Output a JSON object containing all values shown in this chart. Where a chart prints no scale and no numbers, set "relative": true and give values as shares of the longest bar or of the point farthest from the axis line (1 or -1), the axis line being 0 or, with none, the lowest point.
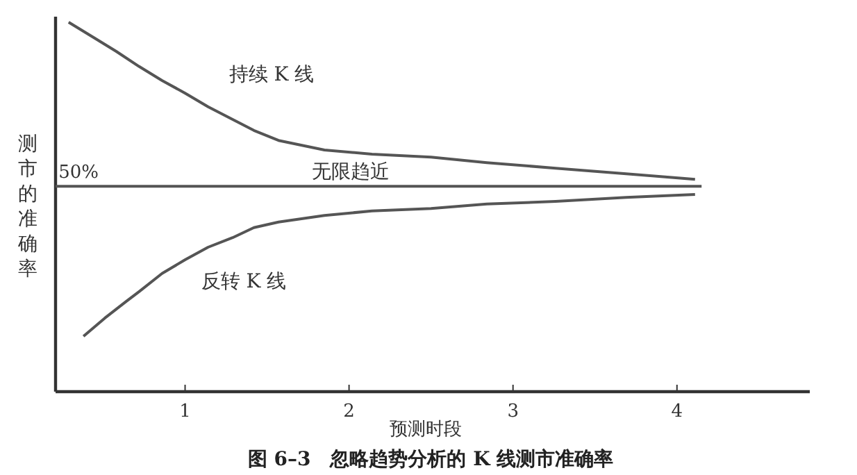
{
  "chart_data": {
    "type": "line",
    "title": "图 6–3　忽略趋势分析的 K 线测市准确率",
    "xlabel": "预测时段",
    "ylabel": "测市的准确率",
    "relative": true,
    "xlim": [
      0.21,
      4.81
    ],
    "xticks": [
      1,
      2,
      3,
      4
    ],
    "tick_labels": "x",
    "grid": false,
    "marker": "none",
    "line_style": "solid",
    "series": [
      {
        "name": "持续 K 线",
        "color": "#555555",
        "x": [
          0.29,
          0.44,
          0.58,
          0.72,
          0.86,
          1.0,
          1.14,
          1.29,
          1.42,
          1.57,
          1.85,
          2.14,
          2.5,
          2.84,
          3.26,
          3.69,
          4.11
        ],
        "values": [
          1.0,
          0.959,
          0.921,
          0.88,
          0.842,
          0.808,
          0.771,
          0.737,
          0.707,
          0.68,
          0.654,
          0.643,
          0.635,
          0.62,
          0.605,
          0.59,
          0.575
        ]
      },
      {
        "name": "无限趋近",
        "color": "#555555",
        "x": [
          0.21,
          4.15
        ],
        "values": [
          0.556,
          0.556
        ]
      },
      {
        "name": "反转 K 线",
        "color": "#555555",
        "x": [
          0.38,
          0.51,
          0.64,
          0.72,
          0.86,
          1.0,
          1.14,
          1.29,
          1.42,
          1.57,
          1.85,
          2.14,
          2.5,
          2.84,
          3.26,
          3.69,
          4.11
        ],
        "values": [
          0.15,
          0.199,
          0.244,
          0.271,
          0.32,
          0.357,
          0.391,
          0.417,
          0.444,
          0.459,
          0.477,
          0.489,
          0.496,
          0.508,
          0.515,
          0.526,
          0.534
        ]
      }
    ],
    "annotations": [
      {
        "text": "50%",
        "x": 0.35,
        "y": 0.556
      }
    ]
  }
}
